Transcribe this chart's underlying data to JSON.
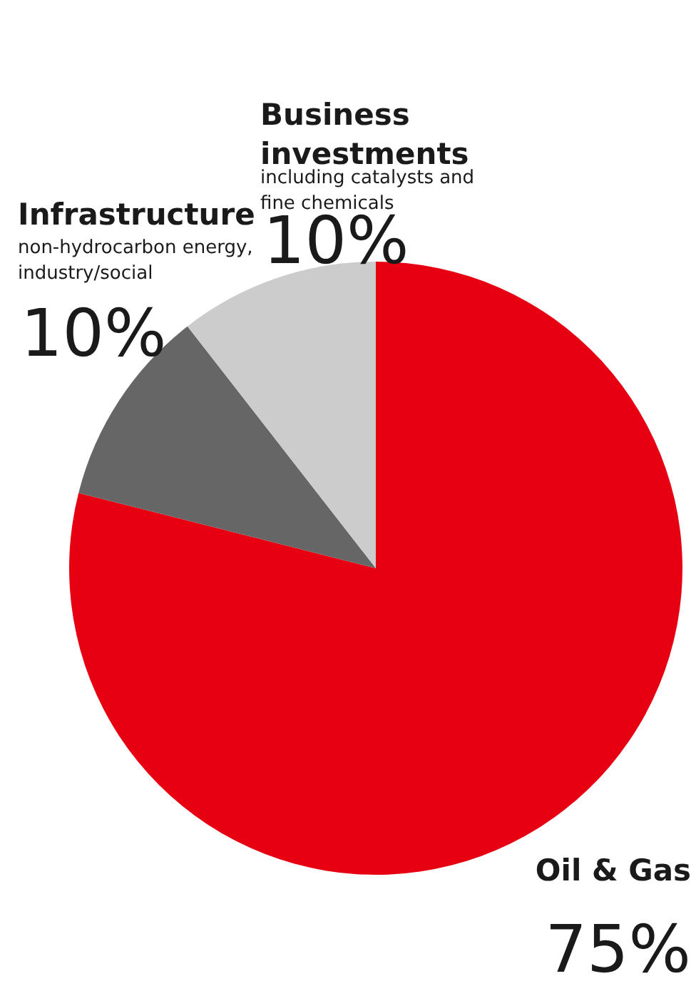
{
  "chart_data": {
    "type": "pie",
    "categories": [
      "Oil & Gas",
      "Infrastructure",
      "Business investments"
    ],
    "values": [
      75,
      10,
      10
    ],
    "colors": [
      "#e60012",
      "#666666",
      "#cccccc"
    ],
    "value_labels": [
      "75%",
      "10%",
      "10%"
    ],
    "annotations": [
      "non-hydrocarbon energy, industry/social",
      "including catalysts and fine chemicals"
    ],
    "legend": false
  }
}
